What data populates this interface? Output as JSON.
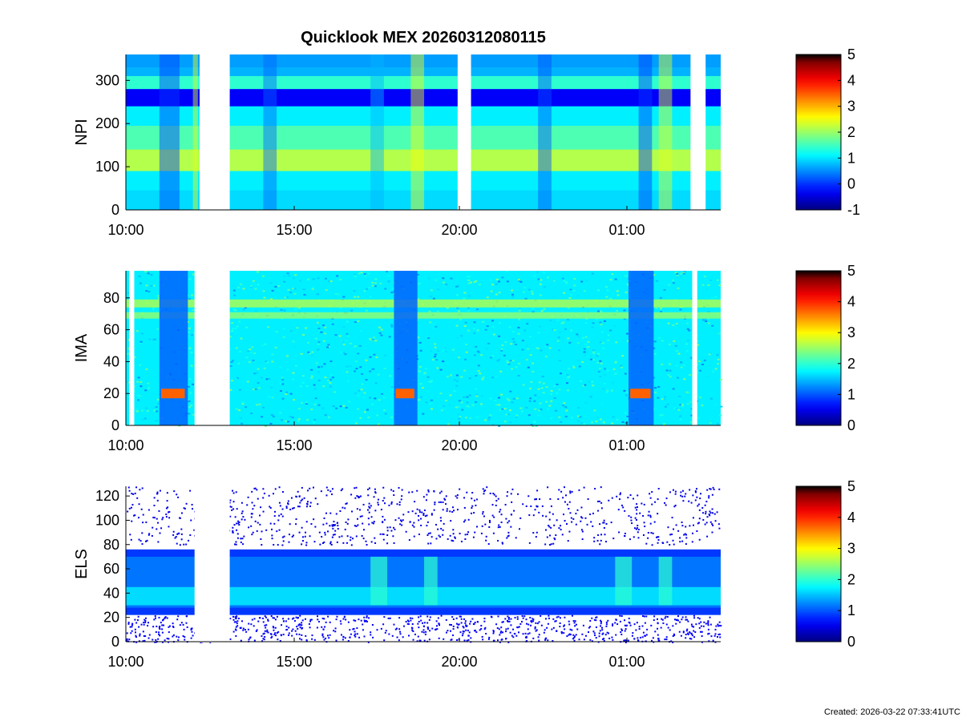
{
  "figure": {
    "title": "Quicklook MEX 20260312080115",
    "footer": "Created: 2026-03-22 07:33:41UTC"
  },
  "chart_data": [
    {
      "type": "heatmap",
      "ylabel": "NPI",
      "x_ticks": [
        "10:00",
        "15:00",
        "20:00",
        "01:00"
      ],
      "x_range_hours": [
        10.0,
        27.75
      ],
      "ylim": [
        0,
        360
      ],
      "y_ticks": [
        0,
        100,
        200,
        300
      ],
      "data_gaps_hours": [
        [
          12.2,
          13.1
        ],
        [
          19.9,
          20.3
        ],
        [
          26.85,
          27.3
        ]
      ],
      "colorbar": {
        "ticks": [
          -1,
          0,
          1,
          2,
          3,
          4,
          5
        ],
        "range": [
          -1,
          5
        ]
      }
    },
    {
      "type": "heatmap",
      "ylabel": "IMA",
      "x_ticks": [
        "10:00",
        "15:00",
        "20:00",
        "01:00"
      ],
      "x_range_hours": [
        10.0,
        27.75
      ],
      "ylim": [
        0,
        97
      ],
      "y_ticks": [
        0,
        20,
        40,
        60,
        80
      ],
      "data_gaps_hours": [
        [
          10.1,
          10.25
        ],
        [
          12.05,
          13.1
        ],
        [
          26.9,
          27.05
        ]
      ],
      "colorbar": {
        "ticks": [
          0,
          1,
          2,
          3,
          4,
          5
        ],
        "range": [
          0,
          5
        ]
      }
    },
    {
      "type": "heatmap",
      "ylabel": "ELS",
      "x_ticks": [
        "10:00",
        "15:00",
        "20:00",
        "01:00"
      ],
      "x_range_hours": [
        10.0,
        27.75
      ],
      "ylim": [
        0,
        128
      ],
      "y_ticks": [
        0,
        20,
        40,
        60,
        80,
        100,
        120
      ],
      "data_gaps_hours": [
        [
          12.05,
          13.1
        ]
      ],
      "colorbar": {
        "ticks": [
          0,
          1,
          2,
          3,
          4,
          5
        ],
        "range": [
          0,
          5
        ]
      }
    }
  ]
}
